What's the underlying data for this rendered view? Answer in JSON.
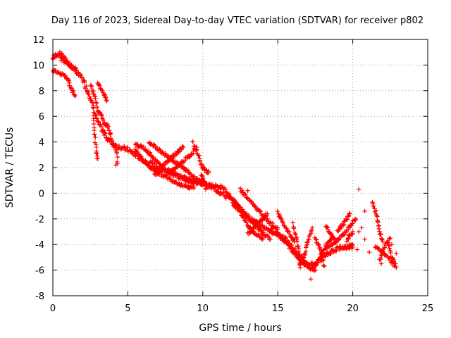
{
  "colors": {
    "series": "#ff0000",
    "axis": "#000000",
    "grid": "#a0a0a0"
  },
  "chart_data": {
    "type": "scatter",
    "title": "Day 116 of 2023, Sidereal Day-to-day VTEC variation (SDTVAR) for receiver p802",
    "xlabel": "GPS time / hours",
    "ylabel": "SDTVAR / TECUs",
    "xlim": [
      0,
      25
    ],
    "ylim": [
      -8,
      12
    ],
    "xticks": [
      0,
      5,
      10,
      15,
      20,
      25
    ],
    "yticks": [
      -8,
      -6,
      -4,
      -2,
      0,
      2,
      4,
      6,
      8,
      10,
      12
    ],
    "grid": true,
    "marker": "plus",
    "series": [
      {
        "name": "SDTVAR",
        "trend": [
          [
            0.0,
            10.5
          ],
          [
            0.3,
            10.9
          ],
          [
            0.6,
            10.8
          ],
          [
            1.0,
            10.2
          ],
          [
            1.5,
            9.6
          ],
          [
            2.0,
            8.9
          ],
          [
            2.5,
            7.5
          ],
          [
            3.0,
            5.5
          ],
          [
            3.5,
            4.5
          ],
          [
            4.0,
            3.8
          ],
          [
            4.5,
            3.6
          ],
          [
            5.0,
            3.4
          ],
          [
            5.5,
            3.0
          ],
          [
            6.0,
            2.6
          ],
          [
            6.5,
            2.3
          ],
          [
            7.0,
            2.0
          ],
          [
            7.5,
            1.7
          ],
          [
            8.0,
            1.5
          ],
          [
            8.5,
            1.2
          ],
          [
            9.0,
            1.0
          ],
          [
            9.5,
            0.9
          ],
          [
            10.0,
            0.8
          ],
          [
            10.5,
            0.5
          ],
          [
            11.0,
            0.2
          ],
          [
            11.5,
            -0.2
          ],
          [
            12.0,
            -0.6
          ],
          [
            12.5,
            -1.2
          ],
          [
            13.0,
            -1.8
          ],
          [
            13.5,
            -2.3
          ],
          [
            14.0,
            -2.6
          ],
          [
            14.5,
            -2.9
          ],
          [
            15.0,
            -3.1
          ],
          [
            15.5,
            -3.6
          ],
          [
            16.0,
            -4.3
          ],
          [
            16.5,
            -5.0
          ],
          [
            17.0,
            -5.7
          ],
          [
            17.5,
            -5.5
          ],
          [
            18.0,
            -5.0
          ],
          [
            18.5,
            -4.6
          ],
          [
            19.0,
            -4.3
          ],
          [
            19.5,
            -4.2
          ],
          [
            20.0,
            -4.2
          ]
        ],
        "tracks": [
          [
            [
              0.0,
              9.6
            ],
            [
              0.5,
              9.4
            ],
            [
              1.0,
              8.9
            ],
            [
              1.3,
              8.0
            ],
            [
              1.5,
              7.6
            ]
          ],
          [
            [
              0.5,
              10.5
            ],
            [
              1.0,
              10.1
            ],
            [
              1.5,
              9.6
            ]
          ],
          [
            [
              2.5,
              8.4
            ],
            [
              2.8,
              7.6
            ],
            [
              3.0,
              6.5
            ],
            [
              3.2,
              6.2
            ],
            [
              3.4,
              5.6
            ],
            [
              3.7,
              5.1
            ],
            [
              4.0,
              4.0
            ],
            [
              4.3,
              3.1
            ],
            [
              4.3,
              2.3
            ]
          ],
          [
            [
              2.7,
              6.0
            ],
            [
              2.8,
              4.5
            ],
            [
              2.9,
              3.2
            ],
            [
              3.0,
              2.7
            ]
          ],
          [
            [
              3.0,
              8.6
            ],
            [
              3.3,
              8.0
            ],
            [
              3.6,
              7.2
            ]
          ],
          [
            [
              5.5,
              3.4
            ],
            [
              6.0,
              2.6
            ],
            [
              6.5,
              2.0
            ],
            [
              7.0,
              1.6
            ],
            [
              7.5,
              1.3
            ],
            [
              8.0,
              1.0
            ],
            [
              8.5,
              0.7
            ],
            [
              9.0,
              0.5
            ],
            [
              9.4,
              0.4
            ]
          ],
          [
            [
              5.5,
              3.8
            ],
            [
              6.0,
              3.6
            ],
            [
              6.5,
              3.0
            ],
            [
              7.0,
              2.4
            ],
            [
              7.5,
              1.9
            ],
            [
              8.0,
              1.6
            ],
            [
              8.5,
              1.3
            ],
            [
              9.0,
              1.1
            ],
            [
              9.5,
              0.9
            ],
            [
              10.0,
              0.7
            ]
          ],
          [
            [
              6.4,
              3.9
            ],
            [
              7.0,
              3.5
            ],
            [
              7.5,
              3.0
            ],
            [
              8.0,
              2.6
            ],
            [
              8.5,
              2.1
            ],
            [
              9.0,
              1.7
            ],
            [
              9.5,
              1.2
            ],
            [
              10.0,
              0.9
            ]
          ],
          [
            [
              6.8,
              1.4
            ],
            [
              7.3,
              2.1
            ],
            [
              7.8,
              2.7
            ],
            [
              8.3,
              3.2
            ],
            [
              8.7,
              3.6
            ]
          ],
          [
            [
              7.8,
              1.6
            ],
            [
              8.3,
              2.1
            ],
            [
              8.8,
              2.6
            ],
            [
              9.3,
              3.1
            ],
            [
              9.6,
              3.6
            ]
          ],
          [
            [
              9.3,
              4.0
            ],
            [
              9.6,
              3.3
            ],
            [
              9.8,
              2.6
            ],
            [
              10.0,
              1.9
            ]
          ],
          [
            [
              10.0,
              2.0
            ],
            [
              10.2,
              1.8
            ],
            [
              10.4,
              1.6
            ]
          ],
          [
            [
              9.9,
              1.4
            ],
            [
              10.1,
              0.9
            ],
            [
              10.2,
              0.3
            ]
          ],
          [
            [
              10.5,
              0.6
            ],
            [
              11.0,
              0.5
            ],
            [
              11.5,
              0.3
            ]
          ],
          [
            [
              11.5,
              0.2
            ],
            [
              12.0,
              -0.5
            ],
            [
              12.5,
              -1.2
            ],
            [
              13.0,
              -1.9
            ],
            [
              13.5,
              -2.5
            ],
            [
              14.0,
              -3.1
            ],
            [
              14.5,
              -3.6
            ]
          ],
          [
            [
              12.0,
              -0.8
            ],
            [
              12.5,
              -1.5
            ],
            [
              13.0,
              -2.5
            ],
            [
              13.5,
              -3.2
            ],
            [
              14.0,
              -3.6
            ]
          ],
          [
            [
              12.5,
              0.3
            ],
            [
              13.0,
              -0.4
            ],
            [
              13.5,
              -1.1
            ],
            [
              14.0,
              -1.7
            ],
            [
              14.5,
              -2.3
            ],
            [
              15.0,
              -2.8
            ]
          ],
          [
            [
              13.0,
              -3.2
            ],
            [
              13.5,
              -2.6
            ],
            [
              14.0,
              -2.0
            ],
            [
              14.3,
              -1.6
            ]
          ],
          [
            [
              14.5,
              -3.0
            ],
            [
              15.0,
              -3.3
            ],
            [
              15.5,
              -3.8
            ],
            [
              16.0,
              -4.5
            ],
            [
              16.5,
              -5.2
            ],
            [
              17.0,
              -5.8
            ],
            [
              17.5,
              -6.0
            ]
          ],
          [
            [
              15.0,
              -1.5
            ],
            [
              15.4,
              -2.5
            ],
            [
              15.8,
              -3.2
            ],
            [
              16.1,
              -3.8
            ]
          ],
          [
            [
              16.0,
              -2.4
            ],
            [
              16.2,
              -3.4
            ],
            [
              16.4,
              -4.6
            ],
            [
              16.5,
              -5.8
            ]
          ],
          [
            [
              16.5,
              -5.6
            ],
            [
              16.8,
              -4.7
            ],
            [
              17.1,
              -3.4
            ],
            [
              17.3,
              -2.7
            ]
          ],
          [
            [
              17.3,
              -5.9
            ],
            [
              17.6,
              -5.4
            ],
            [
              18.0,
              -4.6
            ],
            [
              18.3,
              -3.9
            ],
            [
              18.6,
              -3.5
            ]
          ],
          [
            [
              17.5,
              -3.5
            ],
            [
              17.8,
              -4.2
            ],
            [
              18.0,
              -5.0
            ],
            [
              18.1,
              -5.7
            ]
          ],
          [
            [
              18.2,
              -4.3
            ],
            [
              18.6,
              -4.0
            ],
            [
              19.0,
              -3.6
            ],
            [
              19.4,
              -3.2
            ],
            [
              19.8,
              -2.6
            ],
            [
              20.2,
              -2.0
            ]
          ],
          [
            [
              18.2,
              -2.5
            ],
            [
              18.5,
              -3.2
            ],
            [
              18.8,
              -3.6
            ]
          ],
          [
            [
              19.0,
              -2.9
            ],
            [
              19.3,
              -2.5
            ],
            [
              19.6,
              -2.0
            ],
            [
              19.8,
              -1.6
            ]
          ],
          [
            [
              19.4,
              -4.3
            ],
            [
              19.8,
              -4.1
            ],
            [
              20.0,
              -4.0
            ]
          ],
          [
            [
              19.6,
              -3.7
            ],
            [
              19.8,
              -3.3
            ],
            [
              20.0,
              -3.0
            ]
          ],
          [
            [
              21.3,
              -0.7
            ],
            [
              21.6,
              -1.7
            ],
            [
              21.8,
              -3.0
            ],
            [
              22.0,
              -3.8
            ]
          ],
          [
            [
              21.5,
              -4.2
            ],
            [
              22.0,
              -4.6
            ],
            [
              22.4,
              -5.1
            ],
            [
              22.8,
              -5.7
            ]
          ],
          [
            [
              21.8,
              -5.2
            ],
            [
              22.1,
              -4.2
            ],
            [
              22.5,
              -3.5
            ]
          ],
          [
            [
              22.4,
              -4.0
            ],
            [
              22.6,
              -5.0
            ],
            [
              22.9,
              -5.8
            ]
          ]
        ],
        "points": [
          [
            20.4,
            0.3
          ],
          [
            20.8,
            -1.4
          ],
          [
            20.6,
            -2.7
          ],
          [
            20.4,
            -3.0
          ],
          [
            20.3,
            -4.4
          ],
          [
            20.8,
            -3.6
          ],
          [
            17.2,
            -6.7
          ],
          [
            21.1,
            -4.6
          ],
          [
            22.6,
            -4.0
          ],
          [
            22.9,
            -4.7
          ],
          [
            22.3,
            -3.9
          ],
          [
            21.9,
            -5.5
          ],
          [
            4.2,
            2.2
          ],
          [
            11.2,
            0.6
          ],
          [
            13.0,
            0.2
          ]
        ]
      }
    ]
  }
}
